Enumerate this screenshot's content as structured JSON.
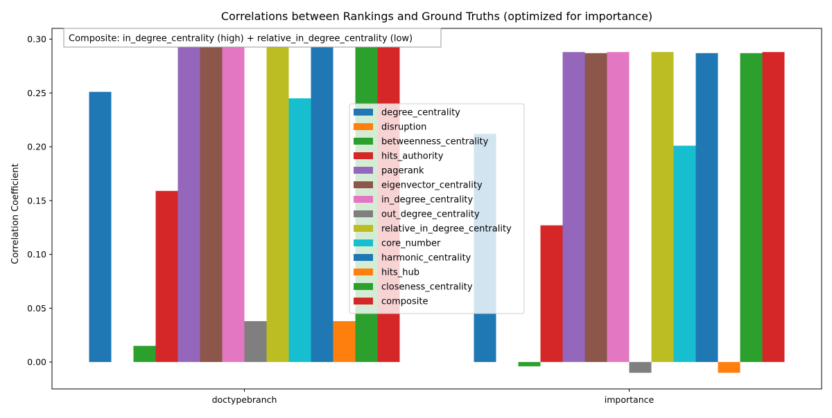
{
  "chart_data": {
    "type": "bar",
    "title": "Correlations between Rankings and Ground Truths (optimized for importance)",
    "xlabel": "",
    "ylabel": "Correlation Coefficient",
    "ylim": [
      -0.025,
      0.31
    ],
    "yticks": [
      0.0,
      0.05,
      0.1,
      0.15,
      0.2,
      0.25,
      0.3
    ],
    "ytick_labels": [
      "0.00",
      "0.05",
      "0.10",
      "0.15",
      "0.20",
      "0.25",
      "0.30"
    ],
    "categories": [
      "doctypebranch",
      "importance"
    ],
    "annotation": "Composite: in_degree_centrality (high) + relative_in_degree_centrality (low)",
    "legend_position": "center",
    "grid": false,
    "series": [
      {
        "name": "degree_centrality",
        "color": "#1f77b4",
        "values": [
          0.251,
          0.212
        ]
      },
      {
        "name": "disruption",
        "color": "#ff7f0e",
        "values": [
          0.0,
          0.0
        ]
      },
      {
        "name": "betweenness_centrality",
        "color": "#2ca02c",
        "values": [
          0.015,
          -0.004
        ]
      },
      {
        "name": "hits_authority",
        "color": "#d62728",
        "values": [
          0.159,
          0.127
        ]
      },
      {
        "name": "pagerank",
        "color": "#9467bd",
        "values": [
          0.297,
          0.288
        ]
      },
      {
        "name": "eigenvector_centrality",
        "color": "#8c564b",
        "values": [
          0.297,
          0.287
        ]
      },
      {
        "name": "in_degree_centrality",
        "color": "#e377c2",
        "values": [
          0.298,
          0.288
        ]
      },
      {
        "name": "out_degree_centrality",
        "color": "#7f7f7f",
        "values": [
          0.038,
          -0.01
        ]
      },
      {
        "name": "relative_in_degree_centrality",
        "color": "#bcbd22",
        "values": [
          0.298,
          0.288
        ]
      },
      {
        "name": "core_number",
        "color": "#17becf",
        "values": [
          0.245,
          0.201
        ]
      },
      {
        "name": "harmonic_centrality",
        "color": "#1f77b4",
        "values": [
          0.297,
          0.287
        ]
      },
      {
        "name": "hits_hub",
        "color": "#ff7f0e",
        "values": [
          0.038,
          -0.01
        ]
      },
      {
        "name": "closeness_centrality",
        "color": "#2ca02c",
        "values": [
          0.297,
          0.287
        ]
      },
      {
        "name": "composite",
        "color": "#d62728",
        "values": [
          0.298,
          0.288
        ]
      }
    ]
  }
}
